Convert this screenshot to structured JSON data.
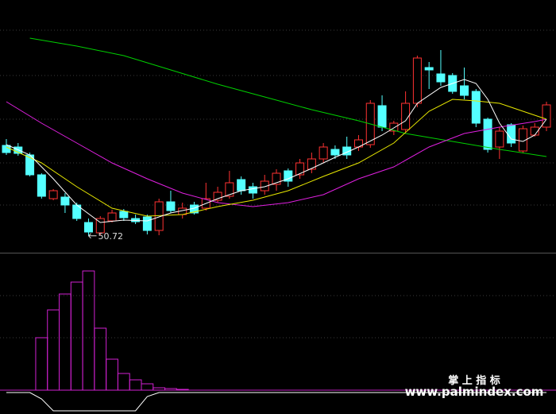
{
  "chart_data": [
    {
      "type": "candlestick",
      "xlim": [
        0,
        46
      ],
      "ylim": [
        48.6,
        80.4
      ],
      "up_color": "#ff3232",
      "down_color": "#54ffff",
      "open": [
        62.1,
        61.9,
        60.9,
        58.4,
        55.4,
        55.6,
        54.6,
        52.4,
        51.1,
        52.6,
        53.8,
        52.9,
        53.1,
        51.4,
        55.0,
        53.4,
        54.6,
        54.2,
        55.2,
        55.7,
        57.8,
        56.9,
        56.4,
        57.2,
        58.9,
        58.4,
        59.1,
        60.4,
        61.6,
        61.9,
        61.9,
        62.2,
        67.1,
        63.9,
        64.1,
        67.4,
        71.9,
        71.1,
        70.9,
        69.6,
        68.9,
        65.4,
        61.9,
        64.7,
        61.4,
        63.4,
        64.4
      ],
      "high": [
        62.9,
        62.4,
        61.2,
        58.6,
        56.6,
        56.1,
        54.9,
        52.9,
        53.2,
        54.0,
        54.1,
        53.4,
        53.4,
        55.4,
        56.4,
        54.9,
        55.0,
        57.4,
        56.9,
        58.9,
        58.2,
        57.4,
        58.4,
        59.1,
        59.2,
        60.4,
        61.2,
        62.4,
        62.1,
        63.2,
        63.4,
        67.8,
        68.4,
        65.2,
        68.9,
        73.4,
        72.6,
        74.1,
        71.2,
        71.9,
        69.2,
        65.6,
        64.4,
        64.9,
        64.6,
        64.9,
        67.6
      ],
      "low": [
        60.9,
        60.8,
        58.2,
        55.4,
        55.2,
        53.6,
        52.6,
        50.72,
        50.8,
        52.4,
        52.6,
        52.2,
        50.9,
        50.8,
        53.6,
        52.9,
        53.4,
        53.9,
        54.9,
        55.4,
        55.9,
        55.4,
        55.9,
        56.4,
        56.9,
        57.9,
        58.6,
        59.9,
        60.4,
        60.4,
        61.4,
        61.8,
        63.9,
        63.4,
        63.6,
        66.9,
        69.2,
        69.6,
        68.6,
        67.9,
        64.4,
        61.2,
        60.4,
        61.9,
        61.2,
        63.2,
        63.9
      ],
      "close": [
        61.2,
        61.1,
        58.4,
        55.7,
        56.4,
        54.6,
        52.9,
        51.2,
        52.9,
        53.6,
        53.0,
        52.5,
        51.4,
        55.0,
        53.9,
        54.2,
        53.6,
        55.4,
        56.2,
        57.4,
        56.4,
        56.1,
        57.6,
        58.6,
        57.6,
        59.9,
        60.4,
        61.9,
        60.9,
        60.9,
        62.8,
        67.4,
        64.4,
        64.9,
        67.4,
        73.1,
        71.6,
        70.1,
        68.9,
        68.4,
        64.9,
        61.6,
        63.9,
        62.4,
        64.2,
        64.4,
        67.2
      ],
      "annotation": {
        "label": "50.72",
        "value": 50.72,
        "x": 7
      },
      "lines": [
        {
          "color": "#00d000",
          "x": [
            2,
            6,
            10,
            14,
            18,
            22,
            26,
            30,
            34,
            38,
            42,
            46
          ],
          "values": [
            75.6,
            74.6,
            73.4,
            71.6,
            69.8,
            68.2,
            66.6,
            65.2,
            63.6,
            62.6,
            61.6,
            60.7
          ]
        },
        {
          "color": "#e020e0",
          "x": [
            0,
            3,
            6,
            9,
            12,
            15,
            18,
            21,
            24,
            27,
            30,
            33,
            36,
            39,
            42,
            45,
            46
          ],
          "values": [
            67.6,
            64.9,
            62.4,
            59.9,
            57.9,
            56.1,
            54.9,
            54.4,
            54.9,
            55.9,
            57.9,
            59.4,
            61.9,
            63.6,
            64.4,
            65.1,
            65.4
          ]
        },
        {
          "color": "#e8e800",
          "x": [
            0,
            3,
            6,
            9,
            12,
            15,
            18,
            21,
            24,
            27,
            30,
            33,
            36,
            38,
            40,
            42,
            44,
            46
          ],
          "values": [
            61.9,
            59.9,
            56.9,
            54.2,
            53.2,
            53.4,
            54.4,
            55.2,
            56.4,
            58.2,
            59.9,
            62.4,
            66.4,
            67.9,
            67.7,
            67.4,
            66.4,
            65.4
          ]
        },
        {
          "color": "#ffffff",
          "x": [
            0,
            2,
            4,
            6,
            8,
            10,
            12,
            14,
            16,
            18,
            20,
            22,
            24,
            26,
            28,
            30,
            32,
            34,
            35,
            37,
            39,
            40,
            41,
            42,
            43,
            44,
            45,
            46
          ],
          "values": [
            62.2,
            60.9,
            57.9,
            54.6,
            52.4,
            52.7,
            52.6,
            53.6,
            54.2,
            55.4,
            56.4,
            56.9,
            57.9,
            59.2,
            60.6,
            61.9,
            63.4,
            65.2,
            67.4,
            69.4,
            70.4,
            69.9,
            67.9,
            64.9,
            62.9,
            62.6,
            63.4,
            65.4
          ]
        }
      ]
    },
    {
      "type": "indicator",
      "xlim": [
        0,
        46
      ],
      "ylim": [
        -30,
        173
      ],
      "bar_color": "#d020d0",
      "line_color": "#ffffff",
      "x": [
        3,
        4,
        5,
        6,
        7,
        8,
        9,
        10,
        11,
        12,
        13,
        14,
        15
      ],
      "values": [
        66,
        101,
        121,
        136,
        150,
        78,
        39,
        21,
        13,
        8,
        3,
        2,
        1
      ],
      "line": [
        -3,
        -3,
        -3,
        -11,
        -26,
        -26,
        -26,
        -26,
        -26,
        -26,
        -26,
        -26,
        -8,
        -3,
        -3,
        -3,
        -3,
        -3,
        -3,
        -3,
        -3,
        -3,
        -3,
        -3,
        -3,
        -3,
        -3,
        -3,
        -3,
        -3,
        -3,
        -3,
        -3,
        -3,
        -3,
        -3,
        -3,
        -3,
        -3,
        -3,
        -3,
        -3,
        -3,
        -3,
        -3,
        -3,
        -3
      ]
    }
  ],
  "watermark": {
    "title": "掌 上 指 标",
    "url": "www.palmindex.com"
  }
}
